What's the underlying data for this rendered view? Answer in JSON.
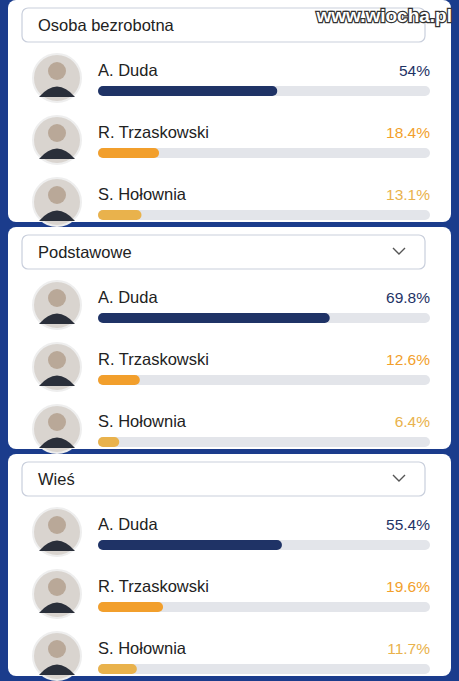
{
  "watermark": "www.wiocha.pl",
  "chart_data": [
    {
      "type": "bar",
      "orientation": "horizontal",
      "title": "Osoba bezrobotna",
      "categories": [
        "A. Duda",
        "R. Trzaskowski",
        "S. Hołownia"
      ],
      "values": [
        54,
        18.4,
        13.1
      ],
      "value_labels": [
        "54%",
        "18.4%",
        "13.1%"
      ],
      "colors": [
        "#1f3366",
        "#f29f2c",
        "#e9b24c"
      ],
      "xlim": [
        0,
        100
      ],
      "tick_labels": false,
      "data_labels": true
    },
    {
      "type": "bar",
      "orientation": "horizontal",
      "title": "Podstawowe",
      "categories": [
        "A. Duda",
        "R. Trzaskowski",
        "S. Hołownia"
      ],
      "values": [
        69.8,
        12.6,
        6.4
      ],
      "value_labels": [
        "69.8%",
        "12.6%",
        "6.4%"
      ],
      "colors": [
        "#1f3366",
        "#f29f2c",
        "#e9b24c"
      ],
      "xlim": [
        0,
        100
      ],
      "tick_labels": false,
      "data_labels": true
    },
    {
      "type": "bar",
      "orientation": "horizontal",
      "title": "Wieś",
      "categories": [
        "A. Duda",
        "R. Trzaskowski",
        "S. Hołownia"
      ],
      "values": [
        55.4,
        19.6,
        11.7
      ],
      "value_labels": [
        "55.4%",
        "19.6%",
        "11.7%"
      ],
      "colors": [
        "#1f3366",
        "#f29f2c",
        "#e9b24c"
      ],
      "xlim": [
        0,
        100
      ],
      "tick_labels": false,
      "data_labels": true
    }
  ]
}
